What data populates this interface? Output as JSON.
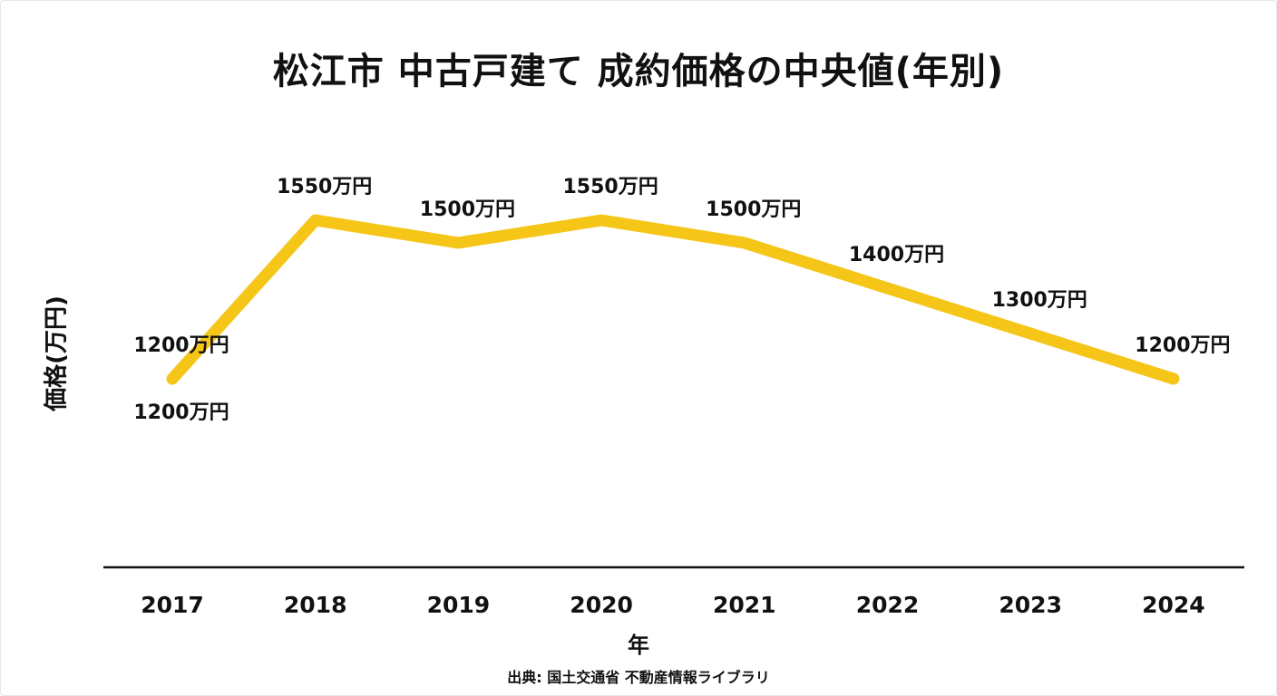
{
  "chart_data": {
    "type": "line",
    "title": "松江市 中古戸建て 成約価格の中央値(年別)",
    "xlabel": "年",
    "ylabel": "価格(万円)",
    "categories": [
      "2017",
      "2018",
      "2019",
      "2020",
      "2021",
      "2022",
      "2023",
      "2024"
    ],
    "series": [
      {
        "values": [
          1200,
          1550,
          1500,
          1550,
          1500,
          1400,
          1300,
          1200
        ],
        "data_labels": [
          "1200万円",
          "1550万円",
          "1500万円",
          "1550万円",
          "1500万円",
          "1400万円",
          "1300万円",
          "1200万円"
        ],
        "color": "#f5c518"
      }
    ],
    "extra_annotations": [
      "1200万円"
    ],
    "source": "出典: 国土交通省 不動産情報ライブラリ",
    "grid": false,
    "legend": "none",
    "axis_color": "#111111"
  }
}
